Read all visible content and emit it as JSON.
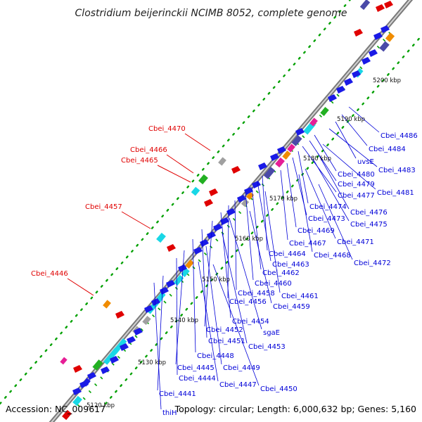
{
  "title": "Clostridium beijerinckii NCIMB 8052, complete genome",
  "footer": {
    "accession": "Accession: NC_009617",
    "summary": "Topology: circular; Length: 6,000,632 bp; Genes: 5,160"
  },
  "colors": {
    "backbone": "#9a9a9a",
    "label_forward": "#e00000",
    "label_reverse": "#0000d8",
    "gene_blue": "#1a1ae6",
    "gene_cyan": "#19d7e6",
    "gene_green": "#22b022",
    "gene_orange": "#f08c00",
    "gene_magenta": "#e61e96",
    "gene_navy": "#4a4aa8",
    "gene_gray": "#a0a0a0",
    "gene_red": "#e00000",
    "ticks": "#00a000"
  },
  "kbp_ticks": [
    "5120 kbp",
    "5130 kbp",
    "5140 kbp",
    "5150 kbp",
    "5160 kbp",
    "5170 kbp",
    "5180 kbp",
    "5190 kbp",
    "5200 kbp"
  ],
  "forward_labels": [
    "Cbei_4470",
    "Cbei_4466",
    "Cbei_4465",
    "Cbei_4457",
    "Cbei_4446"
  ],
  "reverse_labels": [
    "Cbei_4486",
    "Cbei_4484",
    "uvsE",
    "Cbei_4483",
    "Cbei_4480",
    "Cbei_4479",
    "Cbei_4481",
    "Cbei_4477",
    "Cbei_4474",
    "Cbei_4476",
    "Cbei_4473",
    "Cbei_4475",
    "Cbei_4469",
    "Cbei_4471",
    "Cbei_4467",
    "Cbei_4468",
    "Cbei_4472",
    "Cbei_4464",
    "Cbei_4463",
    "Cbei_4462",
    "Cbei_4460",
    "Cbei_4461",
    "Cbei_4458",
    "Cbei_4456",
    "Cbei_4459",
    "Cbei_4454",
    "Cbei_4452",
    "sgaE",
    "Cbei_4451",
    "Cbei_4453",
    "Cbei_4448",
    "Cbei_4449",
    "Cbei_4445",
    "Cbei_4444",
    "Cbei_4447",
    "Cbei_4450",
    "Cbei_4441",
    "thiH"
  ]
}
